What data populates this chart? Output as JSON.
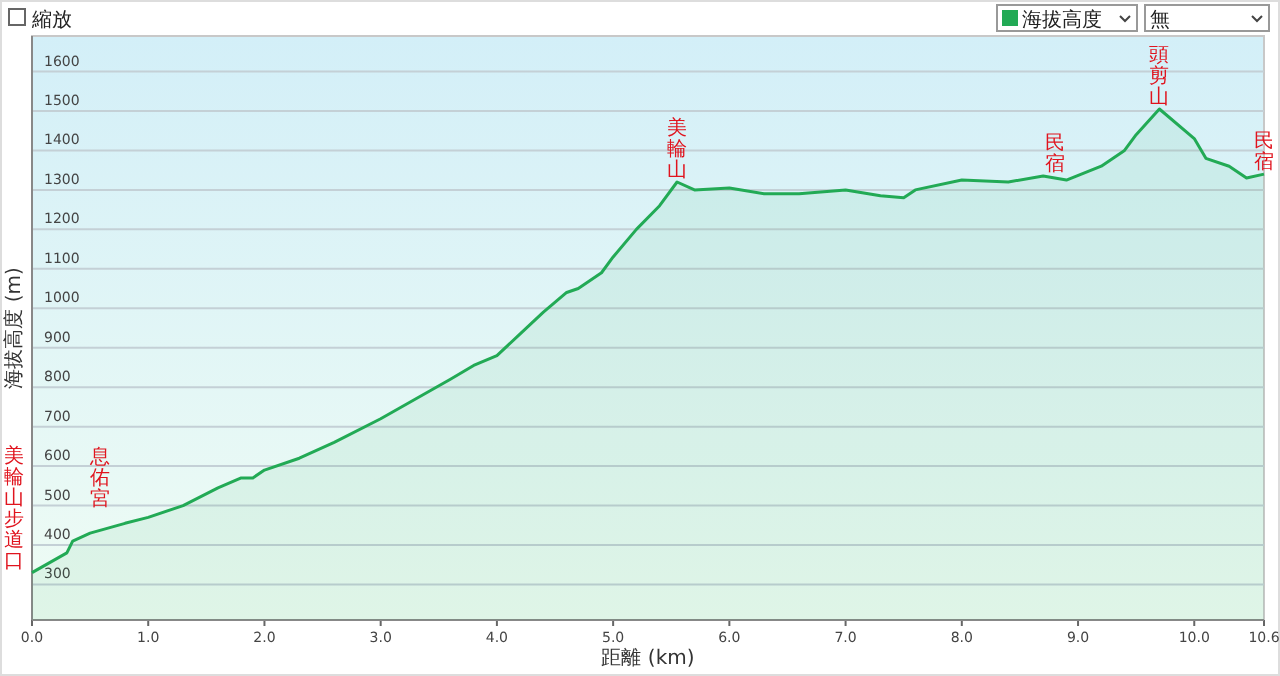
{
  "chart_data": {
    "type": "area",
    "xlabel": "距離 (km)",
    "ylabel": "海拔高度 (m)",
    "legend": "top right",
    "grid": "y",
    "xlim": [
      0,
      10.6
    ],
    "xticks": [
      {
        "value": 0,
        "label": "0.0"
      },
      {
        "value": 1,
        "label": "1.0"
      },
      {
        "value": 2,
        "label": "2.0"
      },
      {
        "value": 3,
        "label": "3.0"
      },
      {
        "value": 4,
        "label": "4.0"
      },
      {
        "value": 5,
        "label": "5.0"
      },
      {
        "value": 6,
        "label": "6.0"
      },
      {
        "value": 7,
        "label": "7.0"
      },
      {
        "value": 8,
        "label": "8.0"
      },
      {
        "value": 9,
        "label": "9.0"
      },
      {
        "value": 10,
        "label": "10.0"
      },
      {
        "value": 10.6,
        "label": "10.6"
      }
    ],
    "ylim": [
      210,
      1690
    ],
    "yticks": [
      300,
      400,
      500,
      600,
      700,
      800,
      900,
      1000,
      1100,
      1200,
      1300,
      1400,
      1500,
      1600
    ],
    "series": [
      {
        "name": "海拔高度",
        "color": "#22aa55",
        "x": [
          0,
          0.3,
          0.35,
          0.5,
          0.8,
          1.0,
          1.3,
          1.6,
          1.8,
          1.9,
          2.0,
          2.3,
          2.6,
          3.0,
          3.3,
          3.6,
          3.8,
          4.0,
          4.2,
          4.4,
          4.6,
          4.7,
          4.9,
          5.0,
          5.2,
          5.4,
          5.55,
          5.7,
          6.0,
          6.3,
          6.6,
          7.0,
          7.3,
          7.5,
          7.6,
          8.0,
          8.4,
          8.7,
          8.9,
          9.2,
          9.4,
          9.5,
          9.7,
          10.0,
          10.1,
          10.3,
          10.45,
          10.6
        ],
        "values": [
          330,
          380,
          410,
          430,
          455,
          470,
          500,
          545,
          570,
          570,
          590,
          620,
          660,
          720,
          770,
          820,
          855,
          880,
          935,
          990,
          1040,
          1050,
          1090,
          1130,
          1200,
          1260,
          1320,
          1300,
          1305,
          1290,
          1290,
          1300,
          1285,
          1280,
          1300,
          1325,
          1320,
          1335,
          1325,
          1360,
          1400,
          1440,
          1505,
          1430,
          1380,
          1360,
          1330,
          1340
        ]
      }
    ],
    "annotations": [
      {
        "text": "美輪山步道口",
        "x": 0,
        "y": 330
      },
      {
        "text": "息佑宮",
        "x": 0.3,
        "y": 380
      },
      {
        "text": "美輪山",
        "x": 5.55,
        "y": 1320
      },
      {
        "text": "民宿",
        "x": 8.8,
        "y": 1335
      },
      {
        "text": "頭剪山",
        "x": 9.7,
        "y": 1505
      },
      {
        "text": "民宿",
        "x": 10.6,
        "y": 1340
      },
      "縮放",
      "無"
    ]
  }
}
